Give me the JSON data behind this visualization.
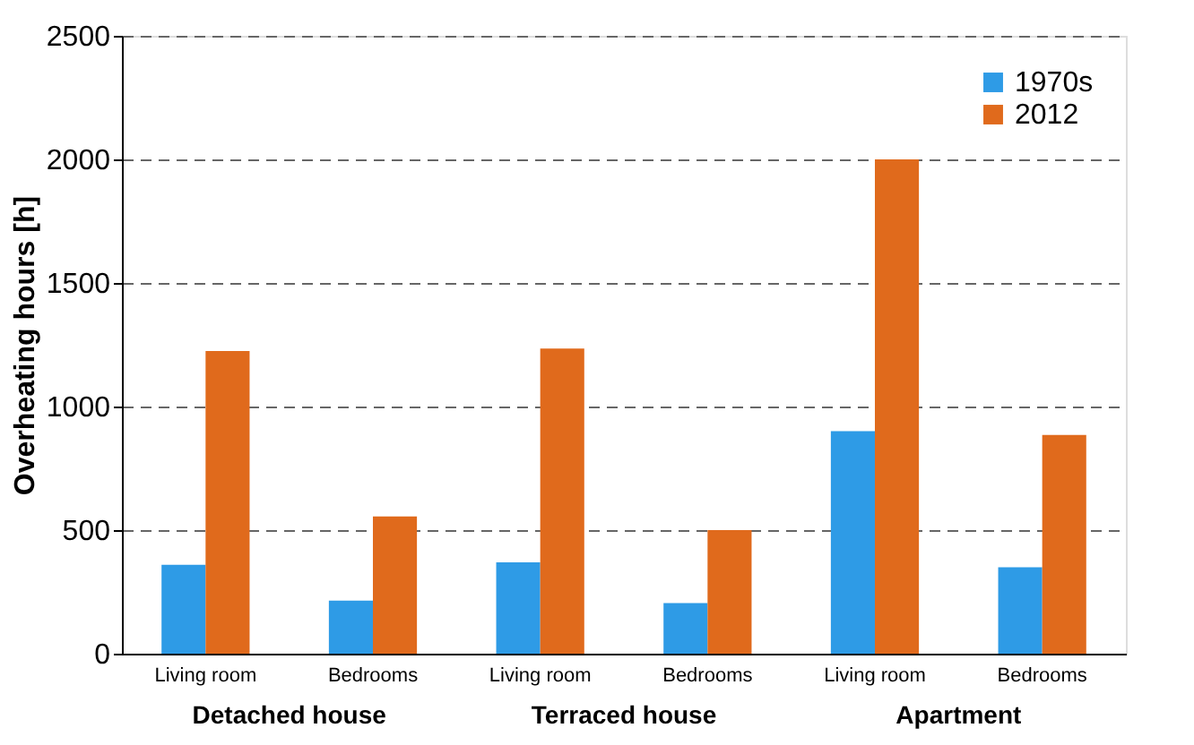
{
  "chart_data": {
    "type": "bar",
    "ylabel": "Overheating hours [h]",
    "categories": [
      "Living room",
      "Bedrooms",
      "Living room",
      "Bedrooms",
      "Living room",
      "Bedrooms"
    ],
    "series": [
      {
        "name": "1970s",
        "color": "#2e9be6",
        "values": [
          360,
          215,
          370,
          205,
          900,
          350
        ]
      },
      {
        "name": "2012",
        "color": "#e06a1c",
        "values": [
          1225,
          555,
          1235,
          500,
          2000,
          885
        ]
      }
    ],
    "annotations": [
      "Detached house",
      "Terraced house",
      "Apartment"
    ],
    "ylim": [
      0,
      2500
    ],
    "yticks": [
      0,
      500,
      1000,
      1500,
      2000,
      2500
    ],
    "grid": "y",
    "legend": "top right"
  }
}
